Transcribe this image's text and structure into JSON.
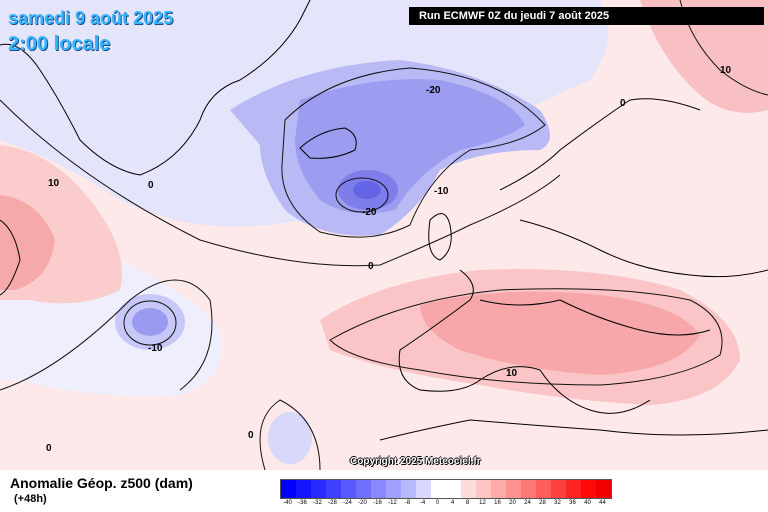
{
  "header": {
    "date": "samedi 9 août 2025",
    "time": "2:00 locale",
    "run": "Run ECMWF 0Z du jeudi 7 août 2025"
  },
  "footer": {
    "title": "Anomalie Géop. z500 (dam)",
    "lead": "(+48h)",
    "copyright": "Copyright 2025 Meteociel.fr"
  },
  "contour_labels": [
    "-20",
    "-20",
    "-10",
    "-10",
    "0",
    "0",
    "0",
    "0",
    "0",
    "10",
    "10",
    "10"
  ],
  "legend": {
    "ticks": [
      "-40",
      "-36",
      "-32",
      "-28",
      "-24",
      "-20",
      "-16",
      "-12",
      "-8",
      "-4",
      "0",
      "4",
      "8",
      "12",
      "16",
      "20",
      "24",
      "28",
      "32",
      "36",
      "40",
      "44"
    ],
    "colors": [
      "#0000ff",
      "#1414ff",
      "#2a2aff",
      "#4040ff",
      "#5858ff",
      "#7070ff",
      "#8888ff",
      "#a0a0ff",
      "#b8b8ff",
      "#d8d8ff",
      "#ffffff",
      "#ffffff",
      "#ffdcdc",
      "#ffc4c4",
      "#ffaaaa",
      "#ff9090",
      "#ff7878",
      "#ff5c5c",
      "#ff4040",
      "#ff2424",
      "#ff0808",
      "#ee0000"
    ]
  }
}
